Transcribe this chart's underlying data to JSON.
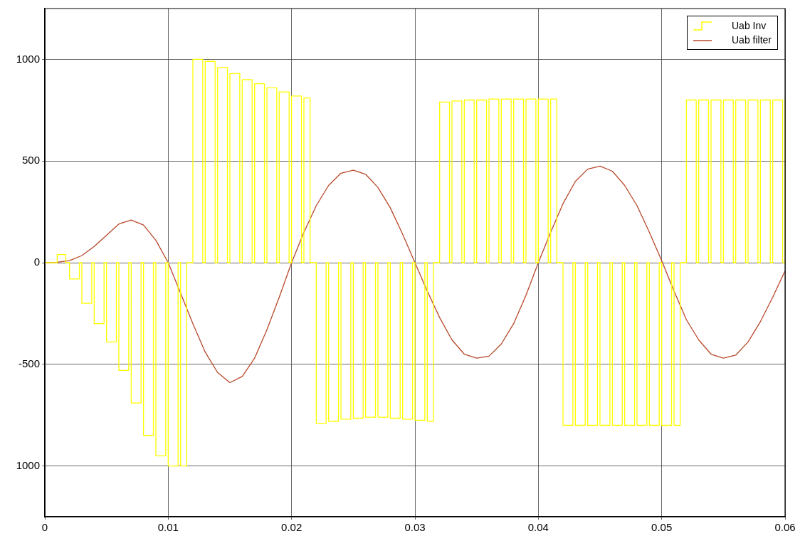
{
  "chart_data": {
    "type": "line",
    "xlim": [
      0,
      0.06
    ],
    "xticks": [
      0,
      0.01,
      0.02,
      0.03,
      0.04,
      0.05,
      0.06
    ],
    "ylim": [
      -1250,
      1250
    ],
    "yticks": [
      {
        "value": -1000,
        "label": "1000"
      },
      -500,
      0,
      500,
      1000
    ],
    "grid": true,
    "legend": "top right",
    "marker": "none",
    "series": [
      {
        "name": "Uab Inv",
        "type": "step",
        "color": "#ffff00",
        "x": [
          0,
          0.001,
          0.0017,
          0.002,
          0.0028,
          0.003,
          0.0038,
          0.004,
          0.0048,
          0.005,
          0.0058,
          0.006,
          0.0068,
          0.007,
          0.0078,
          0.008,
          0.0088,
          0.009,
          0.0098,
          0.01,
          0.0108,
          0.011,
          0.0115,
          0.012,
          0.0128,
          0.013,
          0.0138,
          0.014,
          0.0148,
          0.015,
          0.0158,
          0.016,
          0.0168,
          0.017,
          0.0178,
          0.018,
          0.0188,
          0.019,
          0.0198,
          0.02,
          0.0208,
          0.021,
          0.0215,
          0.022,
          0.0228,
          0.023,
          0.0238,
          0.024,
          0.0248,
          0.025,
          0.0258,
          0.026,
          0.0268,
          0.027,
          0.0278,
          0.028,
          0.0288,
          0.029,
          0.0298,
          0.03,
          0.0308,
          0.031,
          0.0315,
          0.032,
          0.0328,
          0.033,
          0.0338,
          0.034,
          0.0348,
          0.035,
          0.0358,
          0.036,
          0.0368,
          0.037,
          0.0378,
          0.038,
          0.0388,
          0.039,
          0.0398,
          0.04,
          0.0408,
          0.041,
          0.0415,
          0.042,
          0.0428,
          0.043,
          0.0438,
          0.044,
          0.0448,
          0.045,
          0.0458,
          0.046,
          0.0468,
          0.047,
          0.0478,
          0.048,
          0.0488,
          0.049,
          0.0498,
          0.05,
          0.0508,
          0.051,
          0.0515,
          0.052,
          0.0528,
          0.053,
          0.0538,
          0.054,
          0.0548,
          0.055,
          0.0558,
          0.056,
          0.0568,
          0.057,
          0.0578,
          0.058,
          0.0588,
          0.059,
          0.0598,
          0.06
        ],
        "values": [
          0,
          40,
          0,
          -80,
          0,
          -200,
          0,
          -300,
          0,
          -390,
          0,
          -530,
          0,
          -690,
          0,
          -850,
          0,
          -950,
          0,
          -1000,
          0,
          -1000,
          0,
          1000,
          0,
          990,
          0,
          960,
          0,
          930,
          0,
          900,
          0,
          880,
          0,
          860,
          0,
          840,
          0,
          820,
          0,
          810,
          0,
          -790,
          0,
          -780,
          0,
          -770,
          0,
          -765,
          0,
          -760,
          0,
          -760,
          0,
          -765,
          0,
          -770,
          0,
          -775,
          0,
          -780,
          0,
          790,
          0,
          795,
          0,
          800,
          0,
          800,
          0,
          805,
          0,
          805,
          0,
          805,
          0,
          805,
          0,
          805,
          0,
          805,
          0,
          -800,
          0,
          -800,
          0,
          -800,
          0,
          -800,
          0,
          -800,
          0,
          -800,
          0,
          -800,
          0,
          -800,
          0,
          -800,
          0,
          -800,
          0,
          800,
          0,
          800,
          0,
          800,
          0,
          800,
          0,
          800,
          0,
          800,
          0,
          800,
          0,
          800,
          0,
          800
        ]
      },
      {
        "name": "Uab filter",
        "color": "#b8482a",
        "x": [
          0,
          0.001,
          0.002,
          0.003,
          0.004,
          0.005,
          0.006,
          0.007,
          0.008,
          0.009,
          0.01,
          0.011,
          0.012,
          0.013,
          0.014,
          0.015,
          0.016,
          0.017,
          0.018,
          0.019,
          0.02,
          0.021,
          0.022,
          0.023,
          0.024,
          0.025,
          0.026,
          0.027,
          0.028,
          0.029,
          0.03,
          0.031,
          0.032,
          0.033,
          0.034,
          0.035,
          0.036,
          0.037,
          0.038,
          0.039,
          0.04,
          0.041,
          0.042,
          0.043,
          0.044,
          0.045,
          0.046,
          0.047,
          0.048,
          0.049,
          0.05,
          0.051,
          0.052,
          0.053,
          0.054,
          0.055,
          0.056,
          0.057,
          0.058,
          0.059,
          0.06
        ],
        "values": [
          0,
          2,
          10,
          35,
          80,
          135,
          190,
          210,
          185,
          110,
          0,
          -150,
          -300,
          -440,
          -540,
          -590,
          -560,
          -470,
          -330,
          -170,
          0,
          150,
          280,
          380,
          440,
          455,
          435,
          370,
          270,
          140,
          0,
          -140,
          -270,
          -380,
          -450,
          -470,
          -460,
          -400,
          -300,
          -160,
          0,
          150,
          290,
          400,
          460,
          475,
          450,
          380,
          280,
          150,
          10,
          -140,
          -280,
          -380,
          -450,
          -470,
          -455,
          -390,
          -290,
          -170,
          -40
        ]
      }
    ]
  }
}
